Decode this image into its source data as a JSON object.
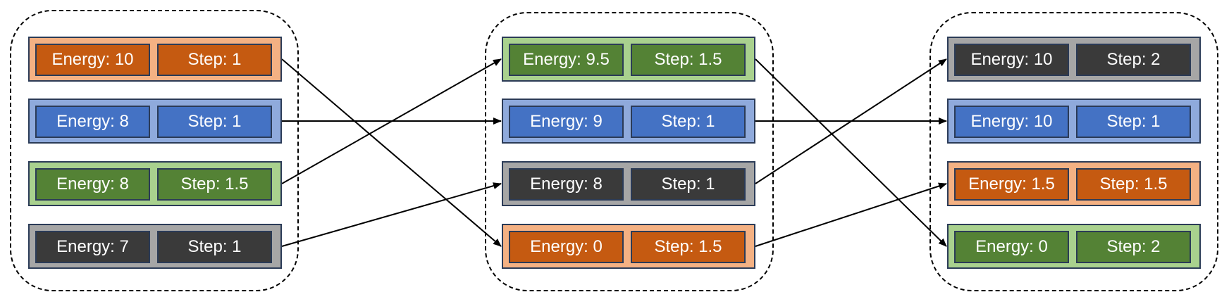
{
  "colors": {
    "orange": {
      "outer": "#f4b183",
      "inner": "#c55a11"
    },
    "blue": {
      "outer": "#8faadc",
      "inner": "#4472c4"
    },
    "green": {
      "outer": "#a9d18e",
      "inner": "#548235"
    },
    "dark": {
      "outer": "#a6a6a6",
      "inner": "#3a3a3a"
    }
  },
  "groups": [
    {
      "rows": [
        {
          "color": "orange",
          "energy": "Energy: 10",
          "step": "Step: 1"
        },
        {
          "color": "blue",
          "energy": "Energy: 8",
          "step": "Step: 1"
        },
        {
          "color": "green",
          "energy": "Energy: 8",
          "step": "Step: 1.5"
        },
        {
          "color": "dark",
          "energy": "Energy: 7",
          "step": "Step: 1"
        }
      ]
    },
    {
      "rows": [
        {
          "color": "green",
          "energy": "Energy: 9.5",
          "step": "Step: 1.5"
        },
        {
          "color": "blue",
          "energy": "Energy: 9",
          "step": "Step: 1"
        },
        {
          "color": "dark",
          "energy": "Energy: 8",
          "step": "Step: 1"
        },
        {
          "color": "orange",
          "energy": "Energy: 0",
          "step": "Step: 1.5"
        }
      ]
    },
    {
      "rows": [
        {
          "color": "dark",
          "energy": "Energy: 10",
          "step": "Step: 2"
        },
        {
          "color": "blue",
          "energy": "Energy: 10",
          "step": "Step: 1"
        },
        {
          "color": "orange",
          "energy": "Energy: 1.5",
          "step": "Step: 1.5"
        },
        {
          "color": "green",
          "energy": "Energy: 0",
          "step": "Step: 2"
        }
      ]
    }
  ],
  "connections": [
    {
      "from": [
        0,
        0
      ],
      "to": [
        1,
        3
      ]
    },
    {
      "from": [
        0,
        1
      ],
      "to": [
        1,
        1
      ]
    },
    {
      "from": [
        0,
        2
      ],
      "to": [
        1,
        0
      ]
    },
    {
      "from": [
        0,
        3
      ],
      "to": [
        1,
        2
      ]
    },
    {
      "from": [
        1,
        0
      ],
      "to": [
        2,
        3
      ]
    },
    {
      "from": [
        1,
        1
      ],
      "to": [
        2,
        1
      ]
    },
    {
      "from": [
        1,
        2
      ],
      "to": [
        2,
        0
      ]
    },
    {
      "from": [
        1,
        3
      ],
      "to": [
        2,
        2
      ]
    }
  ]
}
